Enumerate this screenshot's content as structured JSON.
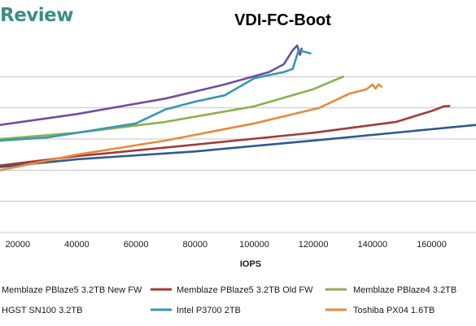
{
  "brand": {
    "text": "Review"
  },
  "chart_data": {
    "type": "line",
    "title": "VDI-FC-Boot",
    "xlabel": "IOPS",
    "ylabel": "",
    "xlim": [
      14000,
      175000
    ],
    "ylim": [
      0,
      6
    ],
    "grid": true,
    "x_ticks": [
      20000,
      40000,
      60000,
      80000,
      100000,
      120000,
      140000,
      160000
    ],
    "x_tick_labels": [
      "20000",
      "40000",
      "60000",
      "80000",
      "100000",
      "120000",
      "140000",
      "160000"
    ],
    "y_ticks": [
      1,
      2,
      3,
      4,
      5
    ],
    "legend_placement": "bottom",
    "series": [
      {
        "name": "Memblaze PBlaze5 3.2TB New FW",
        "color": "#2e5a90",
        "points": [
          [
            14000,
            2.1
          ],
          [
            40000,
            2.35
          ],
          [
            80000,
            2.6
          ],
          [
            120000,
            2.95
          ],
          [
            175000,
            3.45
          ]
        ]
      },
      {
        "name": "Memblaze PBlaze5 3.2TB Old FW",
        "color": "#a23a36",
        "points": [
          [
            14000,
            2.15
          ],
          [
            40000,
            2.45
          ],
          [
            80000,
            2.82
          ],
          [
            120000,
            3.2
          ],
          [
            148000,
            3.55
          ],
          [
            160000,
            3.9
          ],
          [
            162000,
            3.97
          ],
          [
            164000,
            4.05
          ],
          [
            166000,
            4.06
          ]
        ]
      },
      {
        "name": "Memblaze PBlaze4 3.2TB",
        "color": "#8cb04c",
        "points": [
          [
            14000,
            3.0
          ],
          [
            40000,
            3.2
          ],
          [
            70000,
            3.55
          ],
          [
            100000,
            4.05
          ],
          [
            120000,
            4.6
          ],
          [
            130000,
            5.0
          ]
        ]
      },
      {
        "name": "HGST SN100 3.2TB",
        "color": "#6f4f9c",
        "points": [
          [
            14000,
            3.45
          ],
          [
            40000,
            3.8
          ],
          [
            70000,
            4.3
          ],
          [
            90000,
            4.75
          ],
          [
            105000,
            5.15
          ],
          [
            110000,
            5.4
          ],
          [
            113000,
            5.85
          ],
          [
            114500,
            6.0
          ],
          [
            115500,
            5.7
          ],
          [
            116000,
            5.9
          ]
        ]
      },
      {
        "name": "Intel P3700 2TB",
        "color": "#3399b3",
        "points": [
          [
            14000,
            2.95
          ],
          [
            30000,
            3.05
          ],
          [
            60000,
            3.5
          ],
          [
            70000,
            3.95
          ],
          [
            80000,
            4.2
          ],
          [
            90000,
            4.4
          ],
          [
            100000,
            4.95
          ],
          [
            110000,
            5.15
          ],
          [
            113000,
            5.25
          ],
          [
            115000,
            5.85
          ],
          [
            117000,
            5.8
          ],
          [
            119000,
            5.75
          ]
        ]
      },
      {
        "name": "Toshiba PX04 1.6TB",
        "color": "#e88a3c",
        "points": [
          [
            14000,
            2.0
          ],
          [
            40000,
            2.5
          ],
          [
            70000,
            2.95
          ],
          [
            100000,
            3.5
          ],
          [
            122000,
            4.0
          ],
          [
            132000,
            4.45
          ],
          [
            138000,
            4.6
          ],
          [
            140000,
            4.75
          ],
          [
            141000,
            4.62
          ],
          [
            142000,
            4.75
          ],
          [
            143000,
            4.68
          ]
        ]
      }
    ]
  }
}
